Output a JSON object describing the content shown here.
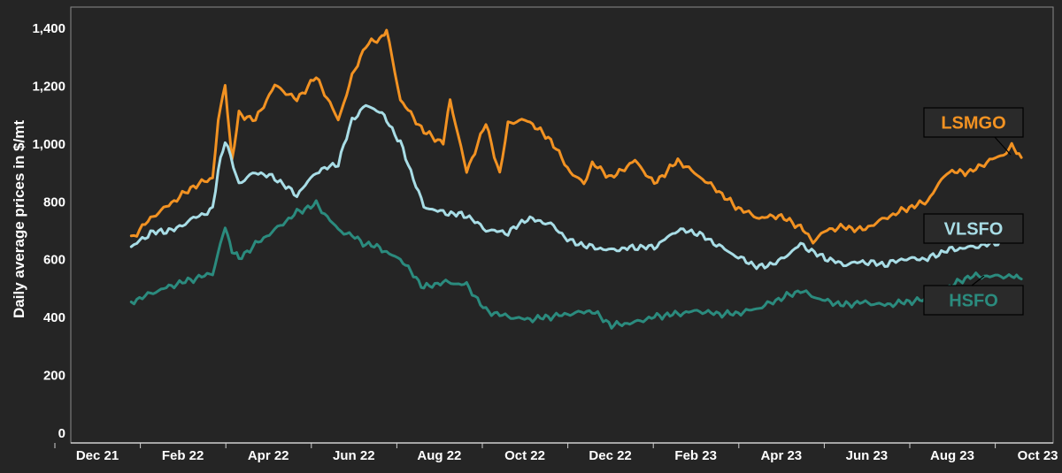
{
  "chart_data": {
    "type": "line",
    "title": "",
    "xlabel": "",
    "ylabel": "Daily average prices in $/mt",
    "ylim": [
      0,
      1400
    ],
    "yticks": [
      0,
      200,
      400,
      600,
      800,
      1000,
      1200,
      1400
    ],
    "ytick_labels": [
      "0",
      "200",
      "400",
      "600",
      "800",
      "1,000",
      "1,200",
      "1,400"
    ],
    "xlim": [
      "2021-12-01",
      "2023-10-31"
    ],
    "xtick_labels": [
      "Dec 21",
      "Feb 22",
      "Apr 22",
      "Jun 22",
      "Aug 22",
      "Oct 22",
      "Dec 22",
      "Feb 23",
      "Apr 23",
      "Jun 23",
      "Aug 23",
      "Oct 23"
    ],
    "grid": false,
    "legend": "labels at right end of series",
    "series": [
      {
        "name": "LSMGO",
        "color": "#F29222",
        "x": [
          "2022-01-01",
          "2022-01-15",
          "2022-02-01",
          "2022-02-15",
          "2022-03-01",
          "2022-03-05",
          "2022-03-10",
          "2022-03-15",
          "2022-03-20",
          "2022-04-01",
          "2022-04-15",
          "2022-05-01",
          "2022-05-15",
          "2022-05-31",
          "2022-06-10",
          "2022-06-20",
          "2022-06-30",
          "2022-07-05",
          "2022-07-15",
          "2022-08-01",
          "2022-08-15",
          "2022-08-20",
          "2022-09-01",
          "2022-09-15",
          "2022-09-25",
          "2022-10-01",
          "2022-10-15",
          "2022-11-01",
          "2022-11-15",
          "2022-11-25",
          "2022-12-01",
          "2022-12-15",
          "2023-01-01",
          "2023-01-15",
          "2023-02-01",
          "2023-02-15",
          "2023-03-01",
          "2023-03-15",
          "2023-04-01",
          "2023-04-15",
          "2023-05-01",
          "2023-05-10",
          "2023-05-20",
          "2023-06-01",
          "2023-06-15",
          "2023-07-01",
          "2023-07-15",
          "2023-08-01",
          "2023-08-15",
          "2023-09-01",
          "2023-09-15",
          "2023-09-25",
          "2023-10-01",
          "2023-10-08"
        ],
        "values": [
          670,
          740,
          800,
          850,
          880,
          1080,
          1200,
          940,
          1100,
          1080,
          1200,
          1150,
          1230,
          1080,
          1230,
          1340,
          1360,
          1390,
          1150,
          1040,
          1000,
          1150,
          900,
          1070,
          890,
          1070,
          1080,
          1010,
          900,
          860,
          930,
          880,
          940,
          860,
          940,
          890,
          840,
          780,
          740,
          750,
          710,
          660,
          700,
          710,
          700,
          740,
          770,
          800,
          900,
          900,
          940,
          960,
          990,
          950
        ]
      },
      {
        "name": "VLSFO",
        "color": "#A8DDE6",
        "x": [
          "2022-01-01",
          "2022-01-15",
          "2022-02-01",
          "2022-02-15",
          "2022-03-01",
          "2022-03-05",
          "2022-03-10",
          "2022-03-20",
          "2022-04-01",
          "2022-04-15",
          "2022-05-01",
          "2022-05-15",
          "2022-05-31",
          "2022-06-10",
          "2022-06-20",
          "2022-06-30",
          "2022-07-05",
          "2022-07-15",
          "2022-08-01",
          "2022-08-15",
          "2022-09-01",
          "2022-09-15",
          "2022-10-01",
          "2022-10-15",
          "2022-11-01",
          "2022-11-15",
          "2022-12-01",
          "2022-12-15",
          "2023-01-01",
          "2023-01-15",
          "2023-02-01",
          "2023-02-15",
          "2023-03-01",
          "2023-03-15",
          "2023-04-01",
          "2023-04-15",
          "2023-05-01",
          "2023-05-15",
          "2023-06-01",
          "2023-06-15",
          "2023-07-01",
          "2023-07-15",
          "2023-08-01",
          "2023-08-15",
          "2023-09-01",
          "2023-09-15",
          "2023-10-01",
          "2023-10-08"
        ],
        "values": [
          640,
          690,
          700,
          740,
          770,
          910,
          1010,
          860,
          900,
          880,
          820,
          900,
          930,
          1080,
          1130,
          1110,
          1080,
          1000,
          780,
          760,
          750,
          700,
          690,
          740,
          720,
          660,
          640,
          630,
          640,
          640,
          700,
          690,
          650,
          610,
          570,
          590,
          650,
          610,
          580,
          590,
          580,
          600,
          600,
          630,
          640,
          650,
          670,
          670
        ]
      },
      {
        "name": "HSFO",
        "color": "#2B8B7E",
        "x": [
          "2022-01-01",
          "2022-01-15",
          "2022-02-01",
          "2022-02-15",
          "2022-03-01",
          "2022-03-10",
          "2022-03-15",
          "2022-03-20",
          "2022-04-01",
          "2022-04-15",
          "2022-05-01",
          "2022-05-15",
          "2022-05-31",
          "2022-06-10",
          "2022-06-20",
          "2022-06-30",
          "2022-07-05",
          "2022-07-15",
          "2022-08-01",
          "2022-08-15",
          "2022-09-01",
          "2022-09-15",
          "2022-10-01",
          "2022-10-15",
          "2022-11-01",
          "2022-11-15",
          "2022-12-01",
          "2022-12-15",
          "2023-01-01",
          "2023-01-15",
          "2023-02-01",
          "2023-02-15",
          "2023-03-01",
          "2023-03-15",
          "2023-04-01",
          "2023-04-15",
          "2023-05-01",
          "2023-05-15",
          "2023-06-01",
          "2023-06-15",
          "2023-07-01",
          "2023-07-15",
          "2023-08-01",
          "2023-08-15",
          "2023-09-01",
          "2023-09-15",
          "2023-10-01",
          "2023-10-08"
        ],
        "values": [
          450,
          480,
          510,
          530,
          550,
          710,
          630,
          600,
          650,
          700,
          760,
          790,
          700,
          680,
          650,
          640,
          620,
          600,
          500,
          520,
          510,
          420,
          400,
          390,
          400,
          410,
          420,
          370,
          380,
          400,
          410,
          420,
          410,
          410,
          430,
          460,
          490,
          460,
          440,
          450,
          440,
          450,
          460,
          500,
          540,
          540,
          540,
          530
        ]
      }
    ]
  }
}
